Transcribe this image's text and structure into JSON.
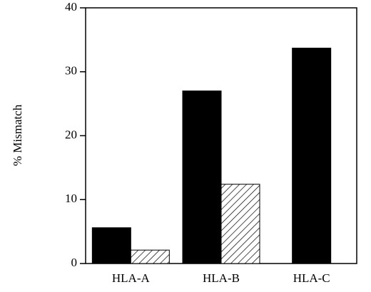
{
  "chart_data": {
    "type": "bar",
    "y_label": "% Mismatch",
    "categories": [
      "HLA-A",
      "HLA-B",
      "HLA-C"
    ],
    "series": [
      {
        "color": "#000000",
        "values": [
          5.6,
          27,
          33.7
        ]
      },
      {
        "color": "#000000",
        "pattern": "hatch",
        "values": [
          2.1,
          12.4,
          null
        ]
      }
    ],
    "ylim": [
      0,
      40
    ],
    "yticks": [
      0,
      10,
      20,
      30,
      40
    ],
    "grid": false
  }
}
